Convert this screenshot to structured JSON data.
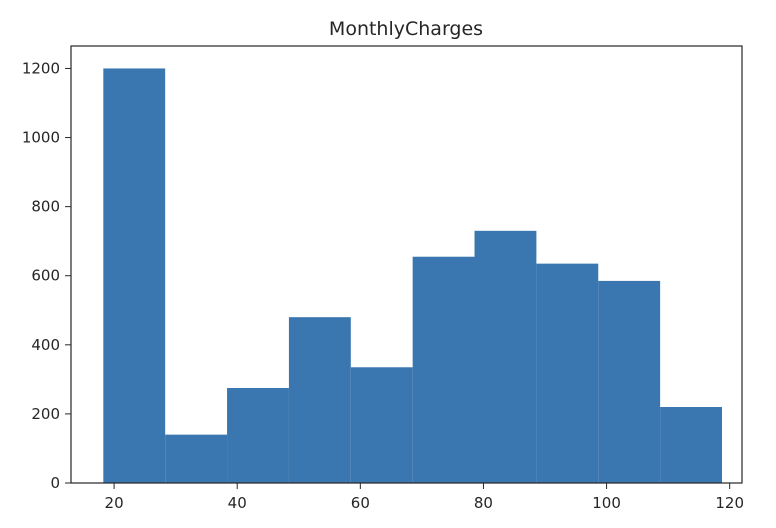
{
  "chart_data": {
    "type": "bar",
    "title": "MonthlyCharges",
    "xlabel": "",
    "ylabel": "",
    "bin_edges": [
      18.25,
      28.3,
      38.35,
      48.4,
      58.45,
      68.5,
      78.55,
      88.6,
      98.65,
      108.7,
      118.75
    ],
    "values": [
      1200,
      140,
      275,
      480,
      335,
      655,
      730,
      635,
      585,
      220
    ],
    "xlim": [
      13,
      122
    ],
    "ylim": [
      0,
      1265
    ],
    "xticks": [
      20,
      40,
      60,
      80,
      100,
      120
    ],
    "yticks": [
      0,
      200,
      400,
      600,
      800,
      1000,
      1200
    ],
    "bar_color": "#3a76af",
    "grid": false
  }
}
